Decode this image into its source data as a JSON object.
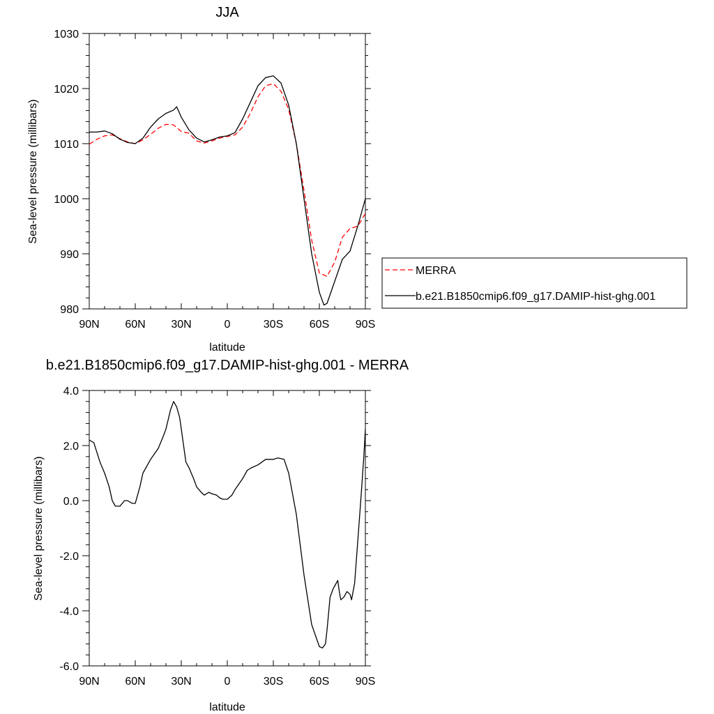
{
  "chart_data": [
    {
      "type": "line",
      "title": "JJA",
      "xlabel": "latitude",
      "ylabel": "Sea-level pressure (millibars)",
      "xlim": [
        90,
        -90
      ],
      "ylim": [
        980,
        1030
      ],
      "xticks": [
        90,
        60,
        30,
        0,
        -30,
        -60,
        -90
      ],
      "xtick_labels": [
        "90N",
        "60N",
        "30N",
        "0",
        "30S",
        "60S",
        "90S"
      ],
      "yticks": [
        980,
        990,
        1000,
        1010,
        1020,
        1030
      ],
      "ytick_labels": [
        "980",
        "990",
        "1000",
        "1010",
        "1020",
        "1030"
      ],
      "legend_position": "right",
      "series": [
        {
          "name": "MERRA",
          "color": "#ff0000",
          "style": "dashed",
          "x": [
            90,
            85,
            80,
            75,
            70,
            65,
            60,
            55,
            50,
            45,
            40,
            35,
            30,
            25,
            20,
            15,
            10,
            5,
            0,
            -5,
            -10,
            -15,
            -20,
            -25,
            -30,
            -35,
            -40,
            -45,
            -50,
            -55,
            -60,
            -65,
            -70,
            -75,
            -80,
            -85,
            -90
          ],
          "y": [
            1009.9,
            1010.8,
            1011.4,
            1011.6,
            1010.9,
            1010.3,
            1010.0,
            1010.7,
            1011.7,
            1012.8,
            1013.5,
            1013.4,
            1012.2,
            1011.9,
            1010.5,
            1010.1,
            1010.5,
            1011.0,
            1011.3,
            1011.6,
            1013.0,
            1015.5,
            1018.5,
            1020.5,
            1020.9,
            1019.5,
            1016.2,
            1010.0,
            1001.5,
            992.5,
            986.5,
            985.9,
            988.5,
            993.0,
            994.6,
            995.0,
            997.3
          ]
        },
        {
          "name": "b.e21.B1850cmip6.f09_g17.DAMIP-hist-ghg.001",
          "color": "#000000",
          "style": "solid",
          "x": [
            90,
            85,
            80,
            75,
            70,
            65,
            60,
            55,
            50,
            45,
            40,
            35,
            33,
            30,
            25,
            20,
            15,
            10,
            5,
            0,
            -5,
            -10,
            -15,
            -20,
            -25,
            -30,
            -35,
            -40,
            -45,
            -50,
            -55,
            -60,
            -63,
            -65,
            -70,
            -75,
            -80,
            -85,
            -90
          ],
          "y": [
            1012.1,
            1012.1,
            1012.3,
            1011.8,
            1010.8,
            1010.2,
            1010.0,
            1011.0,
            1013.0,
            1014.5,
            1015.5,
            1016.1,
            1016.7,
            1014.8,
            1012.5,
            1011.0,
            1010.3,
            1010.7,
            1011.2,
            1011.4,
            1012.0,
            1014.5,
            1017.5,
            1020.5,
            1022.0,
            1022.3,
            1021.0,
            1017.0,
            1010.0,
            1000.0,
            990.0,
            983.0,
            980.7,
            981.0,
            985.0,
            989.0,
            990.5,
            995.0,
            1000.0
          ]
        }
      ]
    },
    {
      "type": "line",
      "title": "b.e21.B1850cmip6.f09_g17.DAMIP-hist-ghg.001 - MERRA",
      "xlabel": "latitude",
      "ylabel": "Sea-level pressure (millibars)",
      "xlim": [
        90,
        -90
      ],
      "ylim": [
        -6.0,
        4.0
      ],
      "xticks": [
        90,
        60,
        30,
        0,
        -30,
        -60,
        -90
      ],
      "xtick_labels": [
        "90N",
        "60N",
        "30N",
        "0",
        "30S",
        "60S",
        "90S"
      ],
      "yticks": [
        -6,
        -4,
        -2,
        0,
        2,
        4
      ],
      "ytick_labels": [
        "-6.0",
        "-4.0",
        "-2.0",
        "0.0",
        "2.0",
        "4.0"
      ],
      "series": [
        {
          "color": "#000000",
          "style": "solid",
          "x": [
            90,
            87,
            83,
            80,
            77,
            75,
            73,
            70,
            67,
            65,
            62,
            60,
            57,
            55,
            50,
            45,
            42,
            40,
            37,
            35,
            33,
            31,
            28,
            27,
            25,
            22,
            20,
            17,
            15,
            12,
            10,
            7,
            5,
            3,
            0,
            -3,
            -5,
            -10,
            -13,
            -16,
            -20,
            -25,
            -30,
            -33,
            -37,
            -40,
            -45,
            -50,
            -55,
            -60,
            -62,
            -64,
            -65,
            -67,
            -69,
            -71,
            -72,
            -73,
            -74,
            -76,
            -78,
            -80,
            -81,
            -83,
            -85,
            -87,
            -89,
            -90
          ],
          "y": [
            2.2,
            2.1,
            1.4,
            1.0,
            0.5,
            0.0,
            -0.2,
            -0.2,
            0.0,
            0.0,
            -0.1,
            -0.1,
            0.5,
            1.0,
            1.5,
            1.9,
            2.3,
            2.6,
            3.3,
            3.6,
            3.4,
            3.0,
            1.8,
            1.4,
            1.2,
            0.8,
            0.5,
            0.3,
            0.2,
            0.3,
            0.25,
            0.2,
            0.1,
            0.05,
            0.05,
            0.2,
            0.4,
            0.8,
            1.1,
            1.2,
            1.3,
            1.5,
            1.5,
            1.55,
            1.5,
            1.0,
            -0.5,
            -2.7,
            -4.5,
            -5.3,
            -5.35,
            -5.2,
            -4.7,
            -3.5,
            -3.2,
            -3.0,
            -2.9,
            -3.3,
            -3.6,
            -3.5,
            -3.3,
            -3.4,
            -3.6,
            -3.0,
            -1.5,
            0.0,
            1.6,
            2.6
          ]
        }
      ]
    }
  ]
}
